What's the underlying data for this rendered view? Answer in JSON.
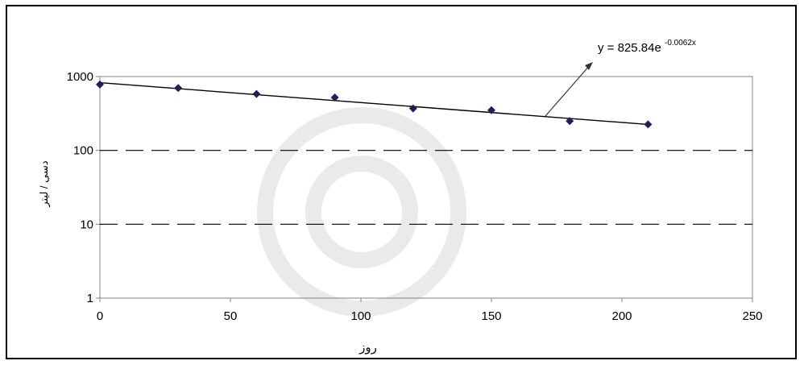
{
  "chart_data": {
    "type": "scatter",
    "xlabel": "روز",
    "ylabel": "دسی / لیتر",
    "x_ticks": [
      "0",
      "50",
      "100",
      "150",
      "200",
      "250"
    ],
    "y_ticks": [
      "1",
      "10",
      "100",
      "1000"
    ],
    "xlim": [
      0,
      250
    ],
    "ylim": [
      1,
      1000
    ],
    "y_scale": "log",
    "grid": "horizontal dashed at 10 and 100",
    "series": [
      {
        "x": [
          0,
          30,
          60,
          90,
          120,
          150,
          180,
          210
        ],
        "y": [
          780,
          700,
          580,
          520,
          370,
          350,
          250,
          225
        ]
      }
    ],
    "trendline": {
      "type": "exponential",
      "a": 825.84,
      "b": -0.0062,
      "equation_main": "y = 825.84e",
      "equation_exponent": "-0.0062x"
    },
    "colors": {
      "markers": "#1f1f5c",
      "trendline": "#000000",
      "axes": "#808080",
      "gridlines": "#000000"
    }
  }
}
